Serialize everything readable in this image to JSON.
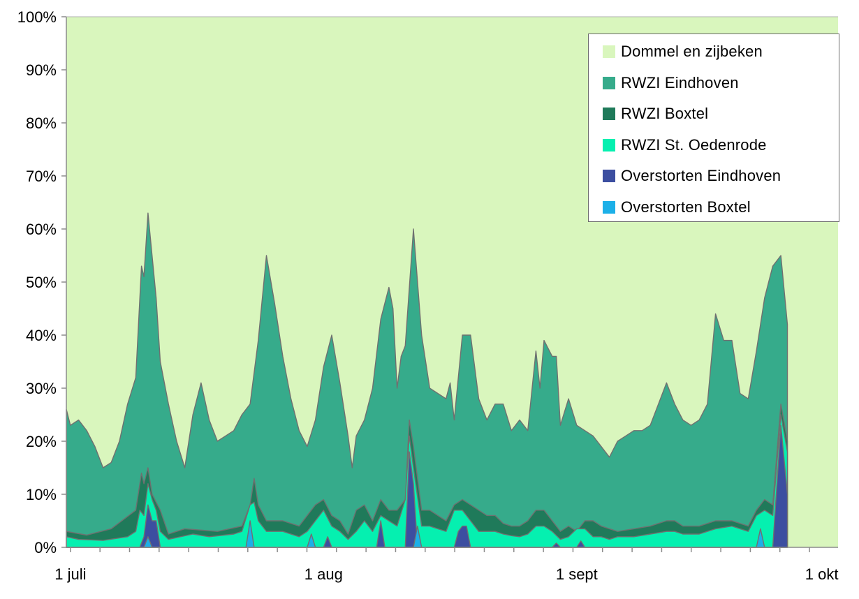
{
  "chart_data": {
    "type": "area",
    "stacked": "percent",
    "title": "",
    "xlabel": "",
    "ylabel": "",
    "ylim": [
      0,
      100
    ],
    "y_ticks": [
      "0%",
      "10%",
      "20%",
      "30%",
      "40%",
      "50%",
      "60%",
      "70%",
      "80%",
      "90%",
      "100%"
    ],
    "x_ticks": [
      {
        "label": "1 juli",
        "day": 1
      },
      {
        "label": "1 aug",
        "day": 32
      },
      {
        "label": "1  sept",
        "day": 63
      },
      {
        "label": "1 okt",
        "day": 93
      }
    ],
    "x_range_days": [
      0.5,
      95
    ],
    "legend_position": "top-right",
    "series_order_bottom_to_top": [
      "Overstorten Boxtel",
      "Overstorten Eindhoven",
      "RWZI St. Oedenrode",
      "RWZI Boxtel",
      "RWZI Eindhoven",
      "Dommel en zijbeken"
    ],
    "series": [
      {
        "name": "Dommel en zijbeken",
        "color": "#d9f6bd",
        "role": "remainder"
      },
      {
        "name": "RWZI Eindhoven",
        "color": "#36ab8b",
        "role": "cumulative_top",
        "points": [
          [
            0.5,
            26
          ],
          [
            1,
            23
          ],
          [
            2,
            24
          ],
          [
            3,
            22
          ],
          [
            4,
            19
          ],
          [
            5,
            15
          ],
          [
            6,
            16
          ],
          [
            7,
            20
          ],
          [
            8,
            27
          ],
          [
            9,
            32
          ],
          [
            9.7,
            53
          ],
          [
            10,
            51
          ],
          [
            10.5,
            63
          ],
          [
            11.5,
            47
          ],
          [
            12,
            35
          ],
          [
            13,
            27
          ],
          [
            14,
            20
          ],
          [
            15,
            15
          ],
          [
            16,
            25
          ],
          [
            17,
            31
          ],
          [
            18,
            24
          ],
          [
            19,
            20
          ],
          [
            20,
            21
          ],
          [
            21,
            22
          ],
          [
            22,
            25
          ],
          [
            23,
            27
          ],
          [
            24,
            39
          ],
          [
            25,
            55
          ],
          [
            26,
            46
          ],
          [
            27,
            36
          ],
          [
            28,
            28
          ],
          [
            29,
            22
          ],
          [
            30,
            19
          ],
          [
            31,
            24
          ],
          [
            32,
            34
          ],
          [
            33,
            40
          ],
          [
            34,
            31
          ],
          [
            35,
            21
          ],
          [
            35.5,
            15
          ],
          [
            36,
            21
          ],
          [
            37,
            24
          ],
          [
            38,
            30
          ],
          [
            39,
            43
          ],
          [
            40,
            49
          ],
          [
            40.5,
            45
          ],
          [
            41,
            30
          ],
          [
            41.5,
            36
          ],
          [
            42,
            38
          ],
          [
            43,
            60
          ],
          [
            44,
            40
          ],
          [
            45,
            30
          ],
          [
            46,
            29
          ],
          [
            47,
            28
          ],
          [
            47.5,
            31
          ],
          [
            48,
            24
          ],
          [
            49,
            40
          ],
          [
            50,
            40
          ],
          [
            51,
            28
          ],
          [
            52,
            24
          ],
          [
            53,
            27
          ],
          [
            54,
            27
          ],
          [
            55,
            22
          ],
          [
            56,
            24
          ],
          [
            57,
            22
          ],
          [
            58,
            37
          ],
          [
            58.5,
            30
          ],
          [
            59,
            39
          ],
          [
            60,
            36
          ],
          [
            60.5,
            36
          ],
          [
            61,
            23
          ],
          [
            62,
            28
          ],
          [
            63,
            23
          ],
          [
            64,
            22
          ],
          [
            65,
            21
          ],
          [
            66,
            19
          ],
          [
            67,
            17
          ],
          [
            68,
            20
          ],
          [
            69,
            21
          ],
          [
            70,
            22
          ],
          [
            71,
            22
          ],
          [
            72,
            23
          ],
          [
            73,
            27
          ],
          [
            74,
            31
          ],
          [
            75,
            27
          ],
          [
            76,
            24
          ],
          [
            77,
            23
          ],
          [
            78,
            24
          ],
          [
            79,
            27
          ],
          [
            80,
            44
          ],
          [
            81,
            39
          ],
          [
            82,
            39
          ],
          [
            83,
            29
          ],
          [
            84,
            28
          ],
          [
            85,
            37
          ],
          [
            86,
            47
          ],
          [
            87,
            53
          ],
          [
            88,
            55
          ],
          [
            88.8,
            42
          ]
        ]
      },
      {
        "name": "RWZI Boxtel",
        "color": "#1f7a5a",
        "role": "cumulative_top",
        "points": [
          [
            0.5,
            3
          ],
          [
            3,
            2.3
          ],
          [
            6,
            3.5
          ],
          [
            9,
            7
          ],
          [
            9.7,
            14
          ],
          [
            10,
            12
          ],
          [
            10.5,
            15
          ],
          [
            11,
            10
          ],
          [
            12,
            7
          ],
          [
            13,
            2.5
          ],
          [
            15,
            3.5
          ],
          [
            19,
            3
          ],
          [
            22,
            4
          ],
          [
            23,
            8
          ],
          [
            23.5,
            13
          ],
          [
            24,
            8
          ],
          [
            25,
            5
          ],
          [
            27,
            5
          ],
          [
            29,
            4
          ],
          [
            30,
            6
          ],
          [
            31,
            8
          ],
          [
            32,
            9
          ],
          [
            33,
            6
          ],
          [
            34,
            5
          ],
          [
            35,
            2.5
          ],
          [
            36,
            7
          ],
          [
            37,
            8
          ],
          [
            38,
            5
          ],
          [
            39,
            9
          ],
          [
            40,
            7
          ],
          [
            41,
            7
          ],
          [
            42,
            9
          ],
          [
            42.5,
            24
          ],
          [
            43,
            19
          ],
          [
            44,
            7
          ],
          [
            45,
            7
          ],
          [
            46,
            6
          ],
          [
            47,
            5
          ],
          [
            48,
            8
          ],
          [
            49,
            9
          ],
          [
            50,
            8
          ],
          [
            51,
            7
          ],
          [
            52,
            6
          ],
          [
            53,
            6
          ],
          [
            54,
            4.5
          ],
          [
            55,
            4
          ],
          [
            56,
            4
          ],
          [
            57,
            5
          ],
          [
            58,
            7
          ],
          [
            59,
            7
          ],
          [
            60,
            5
          ],
          [
            61,
            3
          ],
          [
            62,
            4
          ],
          [
            63,
            3
          ],
          [
            64,
            5
          ],
          [
            65,
            5
          ],
          [
            66,
            4
          ],
          [
            67,
            3.5
          ],
          [
            68,
            3
          ],
          [
            70,
            3.5
          ],
          [
            72,
            4
          ],
          [
            74,
            5
          ],
          [
            75,
            5
          ],
          [
            76,
            4
          ],
          [
            78,
            4
          ],
          [
            80,
            5
          ],
          [
            82,
            5
          ],
          [
            84,
            4
          ],
          [
            85,
            7
          ],
          [
            86,
            9
          ],
          [
            87,
            8
          ],
          [
            88,
            27
          ],
          [
            88.8,
            20
          ]
        ]
      },
      {
        "name": "RWZI St. Oedenrode",
        "color": "#05f0b0",
        "role": "cumulative_top",
        "points": [
          [
            0.5,
            2
          ],
          [
            2,
            1.5
          ],
          [
            5,
            1.3
          ],
          [
            8,
            2
          ],
          [
            9,
            3
          ],
          [
            9.5,
            7
          ],
          [
            10,
            6
          ],
          [
            10.5,
            12
          ],
          [
            11,
            9
          ],
          [
            11.5,
            7
          ],
          [
            12,
            3
          ],
          [
            13,
            1.5
          ],
          [
            16,
            2.5
          ],
          [
            18,
            2
          ],
          [
            21,
            2.5
          ],
          [
            22,
            3
          ],
          [
            23,
            8
          ],
          [
            23.5,
            8.5
          ],
          [
            24,
            5
          ],
          [
            25,
            3
          ],
          [
            27,
            3
          ],
          [
            29,
            2
          ],
          [
            30,
            3
          ],
          [
            31,
            5
          ],
          [
            32,
            7
          ],
          [
            33,
            4
          ],
          [
            34,
            3
          ],
          [
            35,
            1.5
          ],
          [
            36,
            3
          ],
          [
            37,
            5
          ],
          [
            38,
            3
          ],
          [
            39,
            6
          ],
          [
            40,
            5
          ],
          [
            41,
            4
          ],
          [
            42,
            9
          ],
          [
            42.5,
            21
          ],
          [
            43,
            15
          ],
          [
            44,
            4
          ],
          [
            45,
            4
          ],
          [
            46,
            3.5
          ],
          [
            47,
            3
          ],
          [
            48,
            7
          ],
          [
            49,
            7
          ],
          [
            50,
            5
          ],
          [
            51,
            3
          ],
          [
            52,
            3
          ],
          [
            53,
            3
          ],
          [
            54,
            2.5
          ],
          [
            55,
            2.2
          ],
          [
            56,
            2
          ],
          [
            57,
            2.5
          ],
          [
            58,
            4
          ],
          [
            59,
            4
          ],
          [
            60,
            3
          ],
          [
            61,
            1.5
          ],
          [
            62,
            2
          ],
          [
            63,
            3.5
          ],
          [
            64,
            3.5
          ],
          [
            65,
            2
          ],
          [
            66,
            2
          ],
          [
            67,
            1.5
          ],
          [
            68,
            2
          ],
          [
            70,
            2
          ],
          [
            72,
            2.5
          ],
          [
            74,
            3
          ],
          [
            75,
            3
          ],
          [
            76,
            2.5
          ],
          [
            78,
            2.5
          ],
          [
            80,
            3.5
          ],
          [
            82,
            4
          ],
          [
            84,
            3
          ],
          [
            85,
            6
          ],
          [
            86,
            7
          ],
          [
            87,
            6
          ],
          [
            88,
            25
          ],
          [
            88.8,
            18
          ]
        ]
      },
      {
        "name": "Overstorten Eindhoven",
        "color": "#3c4ea0",
        "role": "cumulative_top",
        "points": [
          [
            0.5,
            0
          ],
          [
            9.5,
            0
          ],
          [
            10,
            2
          ],
          [
            10.5,
            8
          ],
          [
            11,
            5
          ],
          [
            11.5,
            5
          ],
          [
            12,
            0
          ],
          [
            30,
            0
          ],
          [
            30.5,
            2
          ],
          [
            31,
            0
          ],
          [
            32,
            0
          ],
          [
            32.5,
            2
          ],
          [
            33,
            0
          ],
          [
            38.5,
            0
          ],
          [
            39,
            5
          ],
          [
            39.5,
            0
          ],
          [
            42,
            0
          ],
          [
            42.5,
            18
          ],
          [
            43,
            12
          ],
          [
            43.5,
            0
          ],
          [
            48,
            0
          ],
          [
            48.5,
            3
          ],
          [
            49,
            4
          ],
          [
            49.5,
            4
          ],
          [
            50,
            0
          ],
          [
            60,
            0
          ],
          [
            60.5,
            0.8
          ],
          [
            61,
            0
          ],
          [
            63,
            0
          ],
          [
            63.5,
            1.2
          ],
          [
            64,
            0
          ],
          [
            85,
            0
          ],
          [
            85.5,
            2
          ],
          [
            86,
            0
          ],
          [
            87,
            0
          ],
          [
            88,
            23
          ],
          [
            88.8,
            10
          ]
        ]
      },
      {
        "name": "Overstorten Boxtel",
        "color": "#1cb0e8",
        "role": "cumulative_top",
        "points": [
          [
            0.5,
            0
          ],
          [
            10,
            0
          ],
          [
            10.5,
            2
          ],
          [
            11,
            0
          ],
          [
            22.5,
            0
          ],
          [
            23,
            5
          ],
          [
            23.5,
            0
          ],
          [
            30,
            0
          ],
          [
            30.5,
            2.5
          ],
          [
            31,
            0
          ],
          [
            43,
            0
          ],
          [
            43.5,
            4
          ],
          [
            44,
            0
          ],
          [
            85,
            0
          ],
          [
            85.5,
            3.5
          ],
          [
            86,
            0
          ]
        ]
      }
    ]
  }
}
